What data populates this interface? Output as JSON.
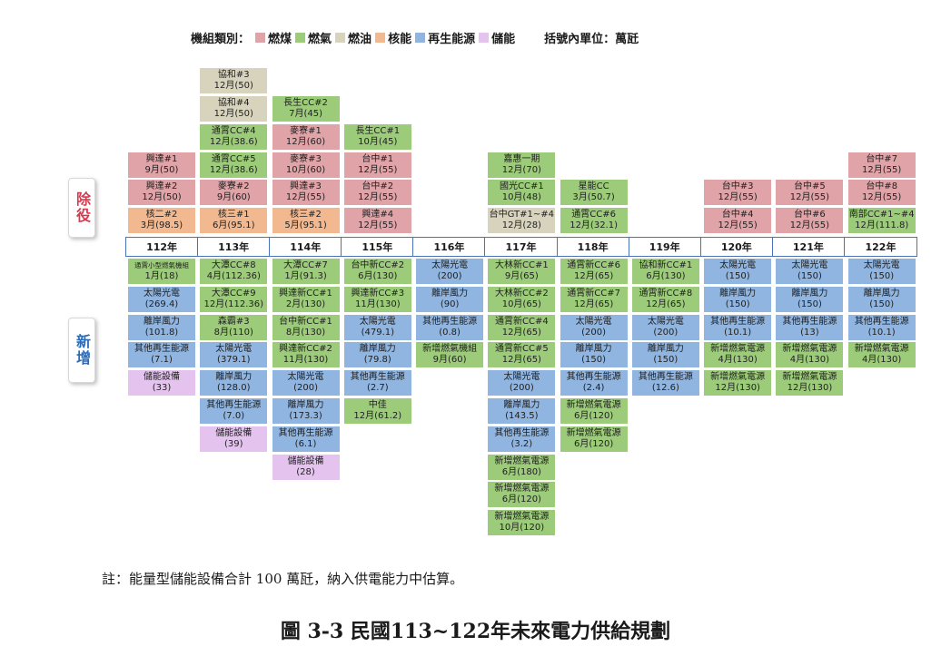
{
  "legend": {
    "title": "機組類別：",
    "items": [
      {
        "label": "燃煤",
        "color": "#e0a3a8"
      },
      {
        "label": "燃氣",
        "color": "#9ccb7a"
      },
      {
        "label": "燃油",
        "color": "#d7d3bd"
      },
      {
        "label": "核能",
        "color": "#f2b88f"
      },
      {
        "label": "再生能源",
        "color": "#8fb5e0"
      },
      {
        "label": "儲能",
        "color": "#e4c4ef"
      }
    ],
    "unit_note": "括號內單位：萬瓩"
  },
  "side_labels": {
    "remove": "除役",
    "add": "新增"
  },
  "years": [
    "112年",
    "113年",
    "114年",
    "115年",
    "116年",
    "117年",
    "118年",
    "119年",
    "120年",
    "121年",
    "122年"
  ],
  "retire": [
    [
      {
        "line1": "興達#1",
        "line2": "9月(50)",
        "type": "coal"
      },
      {
        "line1": "興達#2",
        "line2": "12月(50)",
        "type": "coal"
      },
      {
        "line1": "核二#2",
        "line2": "3月(98.5)",
        "type": "nuclear"
      }
    ],
    [
      {
        "line1": "協和#3",
        "line2": "12月(50)",
        "type": "oil"
      },
      {
        "line1": "協和#4",
        "line2": "12月(50)",
        "type": "oil"
      },
      {
        "line1": "通霄CC#4",
        "line2": "12月(38.6)",
        "type": "gas"
      },
      {
        "line1": "通霄CC#5",
        "line2": "12月(38.6)",
        "type": "gas"
      },
      {
        "line1": "麥寮#2",
        "line2": "9月(60)",
        "type": "coal"
      },
      {
        "line1": "核三#1",
        "line2": "6月(95.1)",
        "type": "nuclear"
      }
    ],
    [
      {
        "line1": "長生CC#2",
        "line2": "7月(45)",
        "type": "gas"
      },
      {
        "line1": "麥寮#1",
        "line2": "12月(60)",
        "type": "coal"
      },
      {
        "line1": "麥寮#3",
        "line2": "10月(60)",
        "type": "coal"
      },
      {
        "line1": "興達#3",
        "line2": "12月(55)",
        "type": "coal"
      },
      {
        "line1": "核三#2",
        "line2": "5月(95.1)",
        "type": "nuclear"
      }
    ],
    [
      {
        "line1": "長生CC#1",
        "line2": "10月(45)",
        "type": "gas"
      },
      {
        "line1": "台中#1",
        "line2": "12月(55)",
        "type": "coal"
      },
      {
        "line1": "台中#2",
        "line2": "12月(55)",
        "type": "coal"
      },
      {
        "line1": "興達#4",
        "line2": "12月(55)",
        "type": "coal"
      }
    ],
    [],
    [
      {
        "line1": "嘉惠一期",
        "line2": "12月(70)",
        "type": "gas"
      },
      {
        "line1": "國光CC#1",
        "line2": "10月(48)",
        "type": "gas"
      },
      {
        "line1": "台中GT#1~#4",
        "line2": "12月(28)",
        "type": "oil"
      }
    ],
    [
      {
        "line1": "星能CC",
        "line2": "3月(50.7)",
        "type": "gas"
      },
      {
        "line1": "通霄CC#6",
        "line2": "12月(32.1)",
        "type": "gas"
      }
    ],
    [],
    [
      {
        "line1": "台中#3",
        "line2": "12月(55)",
        "type": "coal"
      },
      {
        "line1": "台中#4",
        "line2": "12月(55)",
        "type": "coal"
      }
    ],
    [
      {
        "line1": "台中#5",
        "line2": "12月(55)",
        "type": "coal"
      },
      {
        "line1": "台中#6",
        "line2": "12月(55)",
        "type": "coal"
      }
    ],
    [
      {
        "line1": "台中#7",
        "line2": "12月(55)",
        "type": "coal"
      },
      {
        "line1": "台中#8",
        "line2": "12月(55)",
        "type": "coal"
      },
      {
        "line1": "南部CC#1~#4",
        "line2": "12月(111.8)",
        "type": "gas"
      }
    ]
  ],
  "add": [
    [
      {
        "line1": "通霄小型燃氣機組",
        "line2": "1月(18)",
        "type": "gas",
        "small": true
      },
      {
        "line1": "太陽光電",
        "line2": "(269.4)",
        "type": "renew"
      },
      {
        "line1": "離岸風力",
        "line2": "(101.8)",
        "type": "renew"
      },
      {
        "line1": "其他再生能源",
        "line2": "(7.1)",
        "type": "renew"
      },
      {
        "line1": "儲能設備",
        "line2": "(33)",
        "type": "storage"
      }
    ],
    [
      {
        "line1": "大潭CC#8",
        "line2": "4月(112.36)",
        "type": "gas"
      },
      {
        "line1": "大潭CC#9",
        "line2": "12月(112.36)",
        "type": "gas"
      },
      {
        "line1": "森霸#3",
        "line2": "8月(110)",
        "type": "gas"
      },
      {
        "line1": "太陽光電",
        "line2": "(379.1)",
        "type": "renew"
      },
      {
        "line1": "離岸風力",
        "line2": "(128.0)",
        "type": "renew"
      },
      {
        "line1": "其他再生能源",
        "line2": "(7.0)",
        "type": "renew"
      },
      {
        "line1": "儲能設備",
        "line2": "(39)",
        "type": "storage"
      }
    ],
    [
      {
        "line1": "大潭CC#7",
        "line2": "1月(91.3)",
        "type": "gas"
      },
      {
        "line1": "興達新CC#1",
        "line2": "2月(130)",
        "type": "gas"
      },
      {
        "line1": "台中新CC#1",
        "line2": "8月(130)",
        "type": "gas"
      },
      {
        "line1": "興達新CC#2",
        "line2": "11月(130)",
        "type": "gas"
      },
      {
        "line1": "太陽光電",
        "line2": "(200)",
        "type": "renew"
      },
      {
        "line1": "離岸風力",
        "line2": "(173.3)",
        "type": "renew"
      },
      {
        "line1": "其他再生能源",
        "line2": "(6.1)",
        "type": "renew"
      },
      {
        "line1": "儲能設備",
        "line2": "(28)",
        "type": "storage"
      }
    ],
    [
      {
        "line1": "台中新CC#2",
        "line2": "6月(130)",
        "type": "gas"
      },
      {
        "line1": "興達新CC#3",
        "line2": "11月(130)",
        "type": "gas"
      },
      {
        "line1": "太陽光電",
        "line2": "(479.1)",
        "type": "renew"
      },
      {
        "line1": "離岸風力",
        "line2": "(79.8)",
        "type": "renew"
      },
      {
        "line1": "其他再生能源",
        "line2": "(2.7)",
        "type": "renew"
      },
      {
        "line1": "中佳",
        "line2": "12月(61.2)",
        "type": "gas"
      }
    ],
    [
      {
        "line1": "太陽光電",
        "line2": "(200)",
        "type": "renew"
      },
      {
        "line1": "離岸風力",
        "line2": "(90)",
        "type": "renew"
      },
      {
        "line1": "其他再生能源",
        "line2": "(0.8)",
        "type": "renew"
      },
      {
        "line1": "新增燃氣機組",
        "line2": "9月(60)",
        "type": "gas"
      }
    ],
    [
      {
        "line1": "大林新CC#1",
        "line2": "9月(65)",
        "type": "gas"
      },
      {
        "line1": "大林新CC#2",
        "line2": "10月(65)",
        "type": "gas"
      },
      {
        "line1": "通霄新CC#4",
        "line2": "12月(65)",
        "type": "gas"
      },
      {
        "line1": "通霄新CC#5",
        "line2": "12月(65)",
        "type": "gas"
      },
      {
        "line1": "太陽光電",
        "line2": "(200)",
        "type": "renew"
      },
      {
        "line1": "離岸風力",
        "line2": "(143.5)",
        "type": "renew"
      },
      {
        "line1": "其他再生能源",
        "line2": "(3.2)",
        "type": "renew"
      },
      {
        "line1": "新增燃氣電源",
        "line2": "6月(180)",
        "type": "gas"
      },
      {
        "line1": "新增燃氣電源",
        "line2": "6月(120)",
        "type": "gas"
      },
      {
        "line1": "新增燃氣電源",
        "line2": "10月(120)",
        "type": "gas"
      }
    ],
    [
      {
        "line1": "通霄新CC#6",
        "line2": "12月(65)",
        "type": "gas"
      },
      {
        "line1": "通霄新CC#7",
        "line2": "12月(65)",
        "type": "gas"
      },
      {
        "line1": "太陽光電",
        "line2": "(200)",
        "type": "renew"
      },
      {
        "line1": "離岸風力",
        "line2": "(150)",
        "type": "renew"
      },
      {
        "line1": "其他再生能源",
        "line2": "(2.4)",
        "type": "renew"
      },
      {
        "line1": "新增燃氣電源",
        "line2": "6月(120)",
        "type": "gas"
      },
      {
        "line1": "新增燃氣電源",
        "line2": "6月(120)",
        "type": "gas"
      }
    ],
    [
      {
        "line1": "協和新CC#1",
        "line2": "6月(130)",
        "type": "gas"
      },
      {
        "line1": "通霄新CC#8",
        "line2": "12月(65)",
        "type": "gas"
      },
      {
        "line1": "太陽光電",
        "line2": "(200)",
        "type": "renew"
      },
      {
        "line1": "離岸風力",
        "line2": "(150)",
        "type": "renew"
      },
      {
        "line1": "其他再生能源",
        "line2": "(12.6)",
        "type": "renew"
      }
    ],
    [
      {
        "line1": "太陽光電",
        "line2": "(150)",
        "type": "renew"
      },
      {
        "line1": "離岸風力",
        "line2": "(150)",
        "type": "renew"
      },
      {
        "line1": "其他再生能源",
        "line2": "(10.1)",
        "type": "renew"
      },
      {
        "line1": "新增燃氣電源",
        "line2": "4月(130)",
        "type": "gas"
      },
      {
        "line1": "新增燃氣電源",
        "line2": "12月(130)",
        "type": "gas"
      }
    ],
    [
      {
        "line1": "太陽光電",
        "line2": "(150)",
        "type": "renew"
      },
      {
        "line1": "離岸風力",
        "line2": "(150)",
        "type": "renew"
      },
      {
        "line1": "其他再生能源",
        "line2": "(13)",
        "type": "renew"
      },
      {
        "line1": "新增燃氣電源",
        "line2": "4月(130)",
        "type": "gas"
      },
      {
        "line1": "新增燃氣電源",
        "line2": "12月(130)",
        "type": "gas"
      }
    ],
    [
      {
        "line1": "太陽光電",
        "line2": "(150)",
        "type": "renew"
      },
      {
        "line1": "離岸風力",
        "line2": "(150)",
        "type": "renew"
      },
      {
        "line1": "其他再生能源",
        "line2": "(10.1)",
        "type": "renew"
      },
      {
        "line1": "新增燃氣電源",
        "line2": "4月(130)",
        "type": "gas"
      }
    ]
  ],
  "type_colors": {
    "coal": "#e0a3a8",
    "gas": "#9ccb7a",
    "oil": "#d7d3bd",
    "nuclear": "#f2b88f",
    "renew": "#8fb5e0",
    "storage": "#e4c4ef"
  },
  "note": "註：能量型儲能設備合計 100 萬瓩，納入供電能力中估算。",
  "caption": "圖 3-3  民國113~122年未來電力供給規劃"
}
